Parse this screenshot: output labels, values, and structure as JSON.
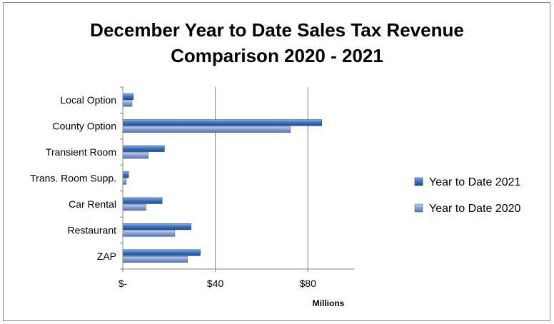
{
  "chart_data": {
    "type": "bar",
    "orientation": "horizontal",
    "title": "December Year to Date Sales Tax Revenue Comparison 2020 - 2021",
    "title_lines": [
      "December Year to Date Sales Tax Revenue",
      "Comparison 2020 - 2021"
    ],
    "categories": [
      "Local Option",
      "County Option",
      "Transient Room",
      "Trans. Room Supp.",
      "Car Rental",
      "Restaurant",
      "ZAP"
    ],
    "series": [
      {
        "name": "Year to Date 2021",
        "values": [
          4.5,
          86,
          18,
          2.5,
          17,
          29.5,
          33.5
        ],
        "color": "#2e62a8"
      },
      {
        "name": "Year to Date 2020",
        "values": [
          4,
          72.5,
          11,
          1.5,
          10,
          22.5,
          28
        ],
        "color": "#7a96cc"
      }
    ],
    "xlabel": "Millions",
    "ylabel": "",
    "xlim": [
      0,
      100
    ],
    "xticks": [
      0,
      40,
      80
    ],
    "xtick_labels": [
      "$-",
      "$40",
      "$80"
    ],
    "grid": true,
    "legend_position": "right"
  }
}
